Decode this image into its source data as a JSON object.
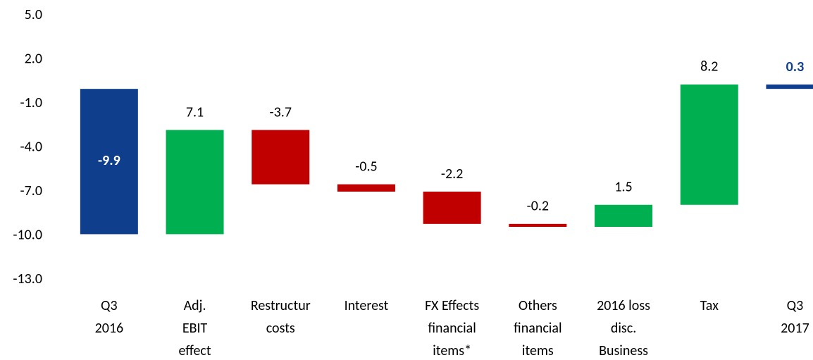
{
  "chart_data": {
    "type": "waterfall",
    "categories": [
      [
        "Q3",
        "2016"
      ],
      [
        "Adj.",
        "EBIT",
        "effect"
      ],
      [
        "Restructur",
        "costs"
      ],
      [
        "Interest"
      ],
      [
        "FX Effects",
        "financial",
        "items*"
      ],
      [
        "Others",
        "financial",
        "items"
      ],
      [
        "2016 loss",
        "disc.",
        "Business"
      ],
      [
        "Tax"
      ],
      [
        "Q3",
        "2017"
      ]
    ],
    "values": [
      -9.9,
      7.1,
      -3.7,
      -0.5,
      -2.2,
      -0.2,
      1.5,
      8.2,
      0.3
    ],
    "measure": [
      "absolute",
      "relative",
      "relative",
      "relative",
      "relative",
      "relative",
      "relative",
      "relative",
      "absolute"
    ],
    "colors": [
      "#0f3f8c",
      "#00b050",
      "#c00000",
      "#c00000",
      "#c00000",
      "#c00000",
      "#00b050",
      "#00b050",
      "#0f3f8c"
    ],
    "ylim": [
      -13,
      5
    ],
    "yticks": [
      {
        "value": 5,
        "label": "5.0"
      },
      {
        "value": 2,
        "label": "2.0"
      },
      {
        "value": -1,
        "label": "-1.0"
      },
      {
        "value": -4,
        "label": "-4.0"
      },
      {
        "value": -7,
        "label": "-7.0"
      },
      {
        "value": -10,
        "label": "-10.0"
      },
      {
        "value": -13,
        "label": "-13.0"
      }
    ]
  }
}
